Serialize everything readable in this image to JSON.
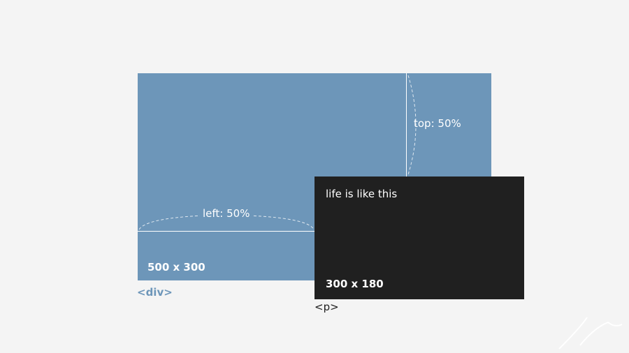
{
  "labels": {
    "top": "top: 50%",
    "left": "left: 50%"
  },
  "parent": {
    "size": "500 x 300",
    "tag": "<div>"
  },
  "child": {
    "text": "life is like this",
    "size": "300 x 180",
    "tag": "<p>"
  }
}
